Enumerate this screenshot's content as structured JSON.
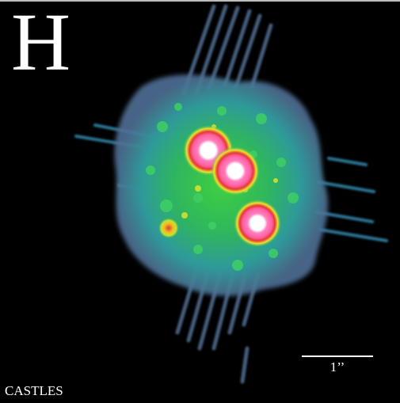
{
  "image": {
    "band_label": "H",
    "scale_bar_label": "1’’",
    "credit": "CASTLES",
    "colors": {
      "background": "#000000",
      "halo_outer": "#5a7a9a",
      "halo_mid": "#2fa58f",
      "halo_inner": "#36c45a",
      "ring_yellow": "#e8e82a",
      "ring_red": "#e03a3a",
      "core_pink": "#ff6fb0",
      "core_white": "#ffffff"
    },
    "features": [
      "quasar-image-1",
      "quasar-image-2",
      "quasar-image-3",
      "lensing-galaxy-knot",
      "diffraction-spikes"
    ]
  }
}
